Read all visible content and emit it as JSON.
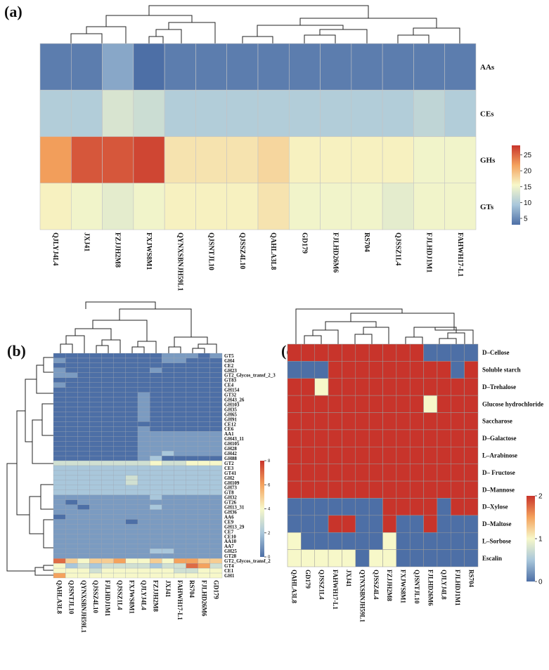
{
  "figure": {
    "panel_a_label": "(a)",
    "panel_b_label": "(b)",
    "panel_c_label": "(c)",
    "colors": {
      "low": "#4d6fa6",
      "mid": "#f7f8c9",
      "high": "#c8342b"
    }
  },
  "chart_data": [
    {
      "id": "a",
      "type": "heatmap",
      "title": "",
      "rows": [
        "AAs",
        "CEs",
        "GHs",
        "GTs"
      ],
      "columns": [
        "QJLYJ4L4",
        "JXJ41",
        "FZJJH2M8",
        "FXJWS8M1",
        "QYNXSBNJH59L1",
        "QJSNTJL10",
        "QJSSZ4L10",
        "QAHLA3L8",
        "GD179",
        "FJLHD26M6",
        "RS704",
        "QJSSZ1L4",
        "FJLHDJ1M1",
        "FAHWH17-L1"
      ],
      "values": [
        [
          4,
          4,
          7,
          3,
          4,
          4,
          4,
          4,
          4,
          4,
          4,
          4,
          4,
          4
        ],
        [
          10,
          10,
          13,
          12,
          10,
          10,
          10,
          10,
          10,
          10,
          10,
          10,
          11,
          10
        ],
        [
          22,
          26,
          26,
          27,
          17,
          17,
          17,
          18,
          16,
          16,
          16,
          16,
          15,
          15
        ],
        [
          16,
          15,
          14,
          15,
          16,
          16,
          16,
          17,
          15,
          15,
          15,
          14,
          15,
          15
        ]
      ],
      "legend_ticks": [
        5,
        10,
        15,
        20,
        25
      ],
      "value_range": [
        3,
        28
      ]
    },
    {
      "id": "b",
      "type": "heatmap",
      "rows": [
        "GT5",
        "GH4",
        "CE2",
        "GH23",
        "GT2_Glycos_transf_2_3",
        "GT83",
        "CE4",
        "GH154",
        "GT32",
        "GH43_26",
        "GH103",
        "GH35",
        "GH65",
        "GH91",
        "CE12",
        "CE6",
        "AA1",
        "GH43_11",
        "GH105",
        "GH28",
        "GH42",
        "GH88",
        "GT2",
        "CE3",
        "GT41",
        "GH2",
        "GH109",
        "GH73",
        "GT8",
        "GH32",
        "GT26",
        "GH13_31",
        "GH36",
        "AA6",
        "CE9",
        "GH13_29",
        "CE7",
        "CE10",
        "AA10",
        "AA7",
        "GH25",
        "GT28",
        "GT2_Glycos_transf_2",
        "GT4",
        "CE1",
        "GH1"
      ],
      "columns": [
        "QAHLA3L8",
        "QJSNTJL10",
        "QYNXSBNJH59L1",
        "QJSSZ4L10",
        "FJLHDJ1M1",
        "QJSSZ1L4",
        "FXJWS8M1",
        "QJLYJ4L4",
        "FZJJH2M8",
        "JXJ41",
        "FAHWH17-L1",
        "RS704",
        "FJLHD26M6",
        "GD179"
      ],
      "values": [
        [
          0,
          0,
          0,
          0,
          0,
          0,
          0,
          0,
          0,
          1,
          1,
          1,
          0,
          1
        ],
        [
          1,
          0,
          0,
          0,
          0,
          0,
          0,
          0,
          0,
          1,
          1,
          0,
          0,
          0
        ],
        [
          0,
          0,
          0,
          0,
          0,
          0,
          0,
          0,
          0,
          0,
          0,
          0,
          0,
          0
        ],
        [
          1,
          0,
          0,
          0,
          0,
          0,
          0,
          0,
          1,
          0,
          0,
          0,
          0,
          0
        ],
        [
          1,
          1,
          0,
          0,
          0,
          0,
          0,
          0,
          0,
          0,
          0,
          0,
          0,
          0
        ],
        [
          0,
          0,
          0,
          0,
          0,
          0,
          0,
          0,
          0,
          0,
          0,
          0,
          0,
          0
        ],
        [
          1,
          0,
          0,
          0,
          0,
          0,
          0,
          0,
          0,
          0,
          0,
          0,
          0,
          0
        ],
        [
          0,
          0,
          0,
          0,
          0,
          0,
          0,
          0,
          0,
          0,
          0,
          0,
          0,
          0
        ],
        [
          0,
          0,
          0,
          0,
          0,
          0,
          0,
          1,
          0,
          0,
          0,
          0,
          0,
          0
        ],
        [
          0,
          0,
          0,
          0,
          0,
          0,
          0,
          1,
          0,
          0,
          0,
          0,
          0,
          0
        ],
        [
          0,
          0,
          0,
          0,
          0,
          0,
          0,
          1,
          0,
          0,
          0,
          0,
          0,
          0
        ],
        [
          0,
          0,
          0,
          0,
          0,
          0,
          0,
          1,
          0,
          0,
          0,
          0,
          0,
          0
        ],
        [
          0,
          0,
          0,
          0,
          0,
          0,
          0,
          1,
          0,
          0,
          0,
          0,
          0,
          0
        ],
        [
          0,
          0,
          0,
          0,
          0,
          0,
          0,
          1,
          0,
          0,
          0,
          0,
          0,
          0
        ],
        [
          0,
          0,
          0,
          0,
          0,
          0,
          0,
          0,
          0,
          0,
          0,
          0,
          0,
          0
        ],
        [
          0,
          0,
          0,
          0,
          0,
          0,
          0,
          1,
          0,
          0,
          0,
          0,
          0,
          0
        ],
        [
          0,
          0,
          0,
          0,
          0,
          0,
          0,
          1,
          1,
          1,
          1,
          1,
          1,
          1
        ],
        [
          0,
          0,
          0,
          0,
          0,
          0,
          0,
          1,
          1,
          1,
          1,
          1,
          1,
          1
        ],
        [
          0,
          0,
          0,
          0,
          0,
          0,
          0,
          1,
          1,
          1,
          1,
          1,
          1,
          1
        ],
        [
          0,
          0,
          0,
          0,
          0,
          0,
          0,
          1,
          1,
          1,
          1,
          1,
          1,
          1
        ],
        [
          0,
          0,
          0,
          0,
          0,
          0,
          0,
          1,
          1,
          2,
          1,
          1,
          1,
          1
        ],
        [
          0,
          0,
          0,
          0,
          0,
          0,
          0,
          1,
          2,
          0,
          0,
          0,
          0,
          0
        ],
        [
          3,
          3,
          3,
          3,
          3,
          3,
          3,
          3,
          4,
          3,
          3,
          4,
          4,
          4
        ],
        [
          2,
          2,
          2,
          2,
          2,
          2,
          2,
          2,
          2,
          2,
          2,
          2,
          2,
          2
        ],
        [
          2,
          2,
          2,
          2,
          2,
          2,
          2,
          2,
          2,
          2,
          2,
          2,
          2,
          2
        ],
        [
          2,
          2,
          2,
          2,
          2,
          2,
          3,
          2,
          2,
          2,
          2,
          2,
          2,
          2
        ],
        [
          2,
          2,
          2,
          2,
          2,
          2,
          3,
          2,
          2,
          2,
          2,
          2,
          2,
          2
        ],
        [
          2,
          2,
          2,
          2,
          2,
          2,
          2,
          2,
          2,
          2,
          2,
          2,
          2,
          2
        ],
        [
          2,
          2,
          2,
          2,
          2,
          2,
          2,
          2,
          2,
          2,
          2,
          2,
          2,
          2
        ],
        [
          1,
          1,
          1,
          1,
          1,
          1,
          1,
          1,
          2,
          1,
          1,
          1,
          1,
          1
        ],
        [
          1,
          0,
          1,
          1,
          1,
          1,
          1,
          1,
          1,
          1,
          1,
          1,
          1,
          1
        ],
        [
          1,
          1,
          0,
          1,
          1,
          1,
          1,
          1,
          2,
          1,
          1,
          1,
          1,
          1
        ],
        [
          1,
          1,
          1,
          1,
          1,
          1,
          1,
          1,
          1,
          1,
          1,
          1,
          1,
          1
        ],
        [
          0,
          1,
          1,
          1,
          1,
          1,
          1,
          1,
          1,
          1,
          1,
          1,
          1,
          1
        ],
        [
          1,
          1,
          1,
          1,
          1,
          1,
          0,
          1,
          1,
          1,
          1,
          1,
          1,
          1
        ],
        [
          1,
          1,
          1,
          1,
          1,
          1,
          1,
          1,
          1,
          1,
          1,
          1,
          1,
          1
        ],
        [
          1,
          1,
          1,
          1,
          1,
          1,
          1,
          1,
          1,
          1,
          1,
          1,
          1,
          1
        ],
        [
          1,
          1,
          1,
          1,
          1,
          1,
          1,
          1,
          1,
          1,
          1,
          1,
          1,
          1
        ],
        [
          1,
          1,
          1,
          1,
          1,
          1,
          1,
          1,
          1,
          1,
          1,
          1,
          1,
          1
        ],
        [
          1,
          1,
          1,
          1,
          1,
          1,
          1,
          1,
          1,
          1,
          1,
          1,
          1,
          1
        ],
        [
          1,
          1,
          1,
          1,
          1,
          1,
          1,
          1,
          2,
          2,
          1,
          1,
          1,
          1
        ],
        [
          1,
          1,
          1,
          1,
          1,
          1,
          1,
          1,
          1,
          1,
          1,
          1,
          1,
          1
        ],
        [
          7,
          5,
          4,
          5,
          5,
          6,
          4,
          4,
          5,
          4,
          6,
          6,
          5,
          5
        ],
        [
          4,
          2,
          3,
          2,
          3,
          3,
          3,
          3,
          2,
          3,
          3,
          7,
          6,
          3
        ],
        [
          4,
          4,
          4,
          3,
          4,
          4,
          4,
          4,
          4,
          4,
          3,
          3,
          4,
          4
        ],
        [
          6,
          4,
          4,
          4,
          4,
          4,
          4,
          4,
          4,
          4,
          4,
          4,
          4,
          4
        ]
      ],
      "legend_ticks": [
        0,
        2,
        4,
        6,
        8
      ],
      "value_range": [
        0,
        8
      ]
    },
    {
      "id": "c",
      "type": "heatmap",
      "rows": [
        "D–Cellose",
        "Soluble starch",
        "D–Trehalose",
        "Glucose hydrochloride",
        "Saccharose",
        "D–Galactose",
        "L–Arabinose",
        "D– Fructose",
        "D–Mannose",
        "D–Xylose",
        "D–Maltose",
        "L–Sorbose",
        "Escalin"
      ],
      "columns": [
        "QAHLA3L8",
        "GD179",
        "QJSSZ1L4",
        "FAHWH17-L1",
        "JXJ41",
        "QYNXSBNJH59L1",
        "QJSSZ4L4",
        "FZJJH2M8",
        "FXJWS8M1",
        "QJSNTJL10",
        "FJLHD26M6",
        "QJLYJ4L8",
        "FJLHDJ1M1",
        "RS704"
      ],
      "values": [
        [
          2,
          2,
          2,
          2,
          2,
          2,
          2,
          2,
          2,
          2,
          0,
          0,
          0,
          0
        ],
        [
          0,
          0,
          0,
          2,
          2,
          2,
          2,
          2,
          2,
          2,
          2,
          2,
          0,
          2
        ],
        [
          2,
          2,
          1,
          2,
          2,
          2,
          2,
          2,
          2,
          2,
          2,
          2,
          2,
          2
        ],
        [
          2,
          2,
          2,
          2,
          2,
          2,
          2,
          2,
          2,
          2,
          1,
          2,
          2,
          2
        ],
        [
          2,
          2,
          2,
          2,
          2,
          2,
          2,
          2,
          2,
          2,
          2,
          2,
          2,
          2
        ],
        [
          2,
          2,
          2,
          2,
          2,
          2,
          2,
          2,
          2,
          2,
          2,
          2,
          2,
          2
        ],
        [
          2,
          2,
          2,
          2,
          2,
          2,
          2,
          2,
          2,
          2,
          2,
          2,
          2,
          2
        ],
        [
          2,
          2,
          2,
          2,
          2,
          2,
          2,
          2,
          2,
          2,
          2,
          2,
          2,
          2
        ],
        [
          2,
          2,
          2,
          2,
          2,
          2,
          2,
          2,
          2,
          2,
          2,
          2,
          2,
          2
        ],
        [
          0,
          0,
          0,
          0,
          0,
          0,
          0,
          2,
          2,
          2,
          2,
          0,
          2,
          2
        ],
        [
          0,
          0,
          0,
          2,
          2,
          0,
          0,
          2,
          0,
          0,
          2,
          0,
          0,
          0
        ],
        [
          1,
          0,
          0,
          0,
          0,
          0,
          0,
          1,
          0,
          0,
          0,
          0,
          0,
          0
        ],
        [
          1,
          1,
          1,
          1,
          1,
          0,
          1,
          1,
          0,
          0,
          0,
          0,
          0,
          0
        ]
      ],
      "legend_ticks": [
        0,
        1,
        2
      ],
      "value_range": [
        0,
        2
      ]
    }
  ]
}
